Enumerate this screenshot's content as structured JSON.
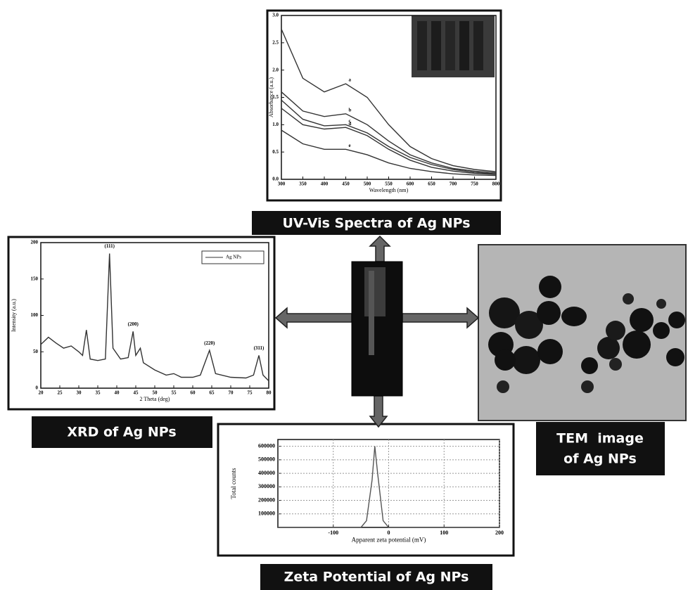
{
  "uv_vis": {
    "caption": "UV-Vis Spectra of Ag NPs",
    "chart": {
      "type": "line",
      "x_label": "Wavelength (nm)",
      "y_label": "Absorbance (a.u.)",
      "xlim": [
        300,
        800
      ],
      "ylim": [
        0,
        3
      ],
      "xticks": [
        300,
        350,
        400,
        450,
        500,
        550,
        600,
        650,
        700,
        750,
        800
      ],
      "yticks": [
        {
          "value": 0,
          "label": "0.0"
        },
        0.5,
        {
          "value": 1,
          "label": "1.0"
        },
        1.5,
        {
          "value": 2,
          "label": "2.0"
        },
        2.5,
        {
          "value": 3,
          "label": "3.0"
        }
      ],
      "x": [
        300,
        350,
        400,
        450,
        500,
        550,
        600,
        650,
        700,
        750,
        800
      ],
      "series": [
        {
          "name": "a",
          "color": "#333333",
          "values": [
            2.75,
            1.85,
            1.6,
            1.75,
            1.5,
            1.0,
            0.6,
            0.38,
            0.25,
            0.18,
            0.14
          ]
        },
        {
          "name": "b",
          "color": "#333333",
          "values": [
            1.6,
            1.25,
            1.15,
            1.2,
            1.0,
            0.7,
            0.45,
            0.3,
            0.2,
            0.15,
            0.12
          ]
        },
        {
          "name": "c",
          "color": "#333333",
          "values": [
            1.45,
            1.1,
            0.98,
            1.0,
            0.85,
            0.6,
            0.4,
            0.27,
            0.18,
            0.13,
            0.1
          ]
        },
        {
          "name": "d",
          "color": "#333333",
          "values": [
            1.3,
            1.0,
            0.92,
            0.95,
            0.8,
            0.55,
            0.35,
            0.22,
            0.15,
            0.11,
            0.09
          ]
        },
        {
          "name": "e",
          "color": "#333333",
          "values": [
            0.9,
            0.65,
            0.55,
            0.55,
            0.45,
            0.3,
            0.2,
            0.14,
            0.1,
            0.08,
            0.07
          ]
        }
      ],
      "series_labels": true
    }
  },
  "xrd": {
    "caption": "XRD of Ag NPs",
    "chart": {
      "type": "line",
      "x_label": "2 Theta (deg)",
      "y_label": "Intensity (a.u.)",
      "xlim": [
        20,
        80
      ],
      "ylim": [
        0,
        200
      ],
      "xticks": [
        20,
        25,
        30,
        35,
        40,
        45,
        50,
        55,
        60,
        65,
        70,
        75,
        80
      ],
      "yticks": [
        0,
        50,
        100,
        150,
        200
      ],
      "x": [
        20,
        22,
        24,
        26,
        28,
        30,
        31,
        32,
        33,
        35,
        37,
        38.1,
        39,
        41,
        43,
        44.3,
        45,
        46.2,
        47,
        50,
        53,
        55,
        57,
        60,
        62,
        64.4,
        66,
        70,
        74,
        76,
        77.4,
        78.5,
        80
      ],
      "series": [
        {
          "name": "Ag NPs",
          "color": "#333333",
          "values": [
            60,
            70,
            62,
            55,
            58,
            50,
            45,
            80,
            40,
            38,
            40,
            185,
            55,
            40,
            42,
            78,
            45,
            55,
            35,
            25,
            18,
            20,
            15,
            15,
            18,
            52,
            20,
            15,
            14,
            18,
            45,
            18,
            10
          ]
        }
      ],
      "legend": "upper right",
      "annotations": [
        {
          "text": "(111)",
          "x": 38.1
        },
        {
          "text": "(200)",
          "x": 44.3
        },
        {
          "text": "(220)",
          "x": 64.4
        },
        {
          "text": "(311)",
          "x": 77.4
        }
      ]
    }
  },
  "tem": {
    "caption_lines": [
      "TEM  image",
      "of Ag NPs"
    ]
  },
  "zeta": {
    "caption": "Zeta Potential of Ag NPs",
    "chart": {
      "type": "line",
      "x_label": "Apparent zeta potential (mV)",
      "y_label": "Total counts",
      "xlim": [
        -200,
        200
      ],
      "ylim": [
        0,
        650000
      ],
      "xticks": [
        -100,
        0,
        100,
        200
      ],
      "yticks": [
        100000,
        200000,
        300000,
        400000,
        500000,
        600000
      ],
      "grid": true,
      "x": [
        -200,
        -100,
        -50,
        -40,
        -30,
        -25,
        -20,
        -10,
        0,
        100,
        200
      ],
      "series": [
        {
          "name": "Total counts",
          "color": "#555555",
          "values": [
            0,
            0,
            0,
            50000,
            350000,
            600000,
            400000,
            50000,
            0,
            0,
            0
          ]
        }
      ]
    }
  }
}
